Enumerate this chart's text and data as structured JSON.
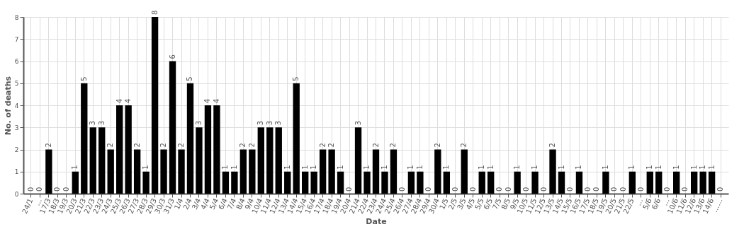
{
  "chart_data": {
    "type": "bar",
    "xlabel": "Date",
    "ylabel": "No. of deaths",
    "categories": [
      "24/1",
      "…",
      "17/3",
      "18/3",
      "19/3",
      "20/3",
      "21/3",
      "22/3",
      "23/3",
      "24/3",
      "25/3",
      "26/3",
      "27/3",
      "28/3",
      "29/3",
      "30/3",
      "31/3",
      "1/4",
      "2/4",
      "3/4",
      "4/4",
      "5/4",
      "6/4",
      "7/4",
      "8/4",
      "9/4",
      "10/4",
      "11/4",
      "12/4",
      "13/4",
      "14/4",
      "15/4",
      "16/4",
      "17/4",
      "18/4",
      "19/4",
      "20/4",
      "21/4",
      "22/4",
      "23/4",
      "24/4",
      "25/4",
      "26/4",
      "27/4",
      "28/4",
      "29/4",
      "30/4",
      "1/5",
      "2/5",
      "3/5",
      "4/5",
      "5/5",
      "6/5",
      "7/5",
      "8/5",
      "9/5",
      "10/5",
      "11/5",
      "12/5",
      "13/5",
      "14/5",
      "15/5",
      "16/5",
      "17/5",
      "18/5",
      "19/5",
      "20/5",
      "21/5",
      "22/5",
      "…",
      "5/6",
      "6/6",
      "…",
      "10/6",
      "11/6",
      "12/6",
      "13/6",
      "14/6",
      "……"
    ],
    "values": [
      0,
      0,
      2,
      0,
      0,
      1,
      5,
      3,
      3,
      2,
      4,
      4,
      2,
      1,
      8,
      2,
      6,
      2,
      5,
      3,
      4,
      4,
      1,
      1,
      2,
      2,
      3,
      3,
      3,
      1,
      5,
      1,
      1,
      2,
      2,
      1,
      0,
      3,
      1,
      2,
      1,
      2,
      0,
      1,
      1,
      0,
      2,
      1,
      0,
      2,
      0,
      1,
      1,
      0,
      0,
      1,
      0,
      1,
      0,
      2,
      1,
      0,
      1,
      0,
      0,
      1,
      0,
      0,
      1,
      0,
      1,
      1,
      0,
      1,
      0,
      1,
      1,
      1,
      0
    ],
    "color": "#000000",
    "ylim": [
      0,
      8
    ],
    "yticks": [
      0,
      1,
      2,
      3,
      4,
      5,
      6,
      7,
      8
    ],
    "grid": true,
    "data_labels": true
  }
}
